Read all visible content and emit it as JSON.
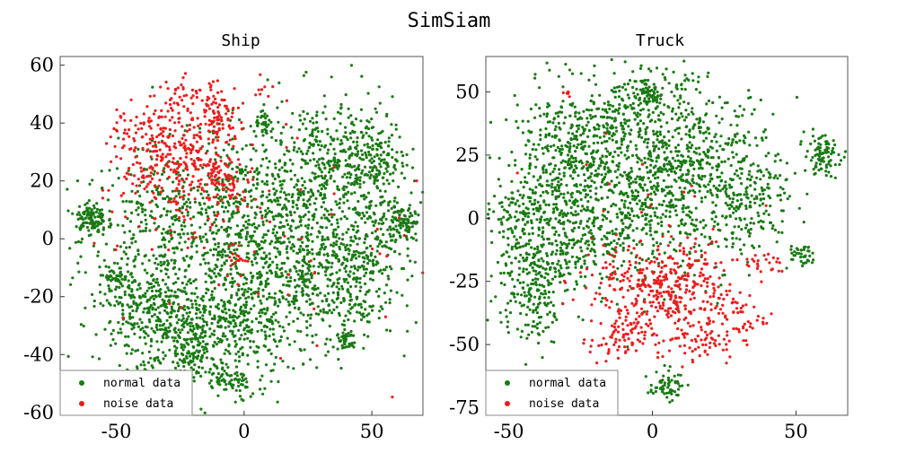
{
  "figure_title": "SimSiam",
  "colors": {
    "normal": "#1a7a14",
    "noise": "#ee1c1c"
  },
  "chart_data": [
    {
      "type": "scatter",
      "title": "Ship",
      "xlim": [
        -72,
        70
      ],
      "ylim": [
        -61,
        63
      ],
      "xticks": [
        -50,
        0,
        50
      ],
      "yticks": [
        60,
        40,
        20,
        0,
        -20,
        -40,
        -60
      ],
      "legend": {
        "placement": "bottom-left",
        "entries": [
          "normal data",
          "noise data"
        ]
      },
      "series": [
        {
          "name": "normal data",
          "color": "#1a7a14",
          "clusters": [
            {
              "c": [
                -28,
                0
              ],
              "s": [
                18,
                16
              ],
              "n": 520
            },
            {
              "c": [
                -22,
                -32
              ],
              "s": [
                14,
                8
              ],
              "n": 320
            },
            {
              "c": [
                5,
                -25
              ],
              "s": [
                16,
                12
              ],
              "n": 380
            },
            {
              "c": [
                30,
                25
              ],
              "s": [
                14,
                12
              ],
              "n": 380
            },
            {
              "c": [
                48,
                28
              ],
              "s": [
                8,
                8
              ],
              "n": 150
            },
            {
              "c": [
                22,
                -3
              ],
              "s": [
                16,
                12
              ],
              "n": 420
            },
            {
              "c": [
                40,
                -15
              ],
              "s": [
                10,
                10
              ],
              "n": 220
            },
            {
              "c": [
                0,
                15
              ],
              "s": [
                10,
                12
              ],
              "n": 180
            },
            {
              "c": [
                -60,
                7
              ],
              "s": [
                3,
                3
              ],
              "n": 110
            },
            {
              "c": [
                -50,
                -14
              ],
              "s": [
                2,
                2
              ],
              "n": 40
            },
            {
              "c": [
                63,
                5
              ],
              "s": [
                3,
                4
              ],
              "n": 90
            },
            {
              "c": [
                8,
                39
              ],
              "s": [
                2,
                2
              ],
              "n": 35
            },
            {
              "c": [
                40,
                -35
              ],
              "s": [
                2,
                2
              ],
              "n": 40
            },
            {
              "c": [
                -5,
                -50
              ],
              "s": [
                5,
                3
              ],
              "n": 60
            },
            {
              "c": [
                -22,
                -40
              ],
              "s": [
                5,
                4
              ],
              "n": 60
            },
            {
              "c": [
                52,
                10
              ],
              "s": [
                6,
                10
              ],
              "n": 120
            },
            {
              "c": [
                -40,
                -25
              ],
              "s": [
                8,
                8
              ],
              "n": 150
            }
          ]
        },
        {
          "name": "noise data",
          "color": "#ee1c1c",
          "clusters": [
            {
              "c": [
                -25,
                27
              ],
              "s": [
                11,
                11
              ],
              "n": 360
            },
            {
              "c": [
                -10,
                45
              ],
              "s": [
                4,
                5
              ],
              "n": 70
            },
            {
              "c": [
                -25,
                48
              ],
              "s": [
                3,
                3
              ],
              "n": 25
            },
            {
              "c": [
                -43,
                35
              ],
              "s": [
                6,
                5
              ],
              "n": 40
            },
            {
              "c": [
                -6,
                20
              ],
              "s": [
                5,
                4
              ],
              "n": 60
            },
            {
              "c": [
                -3,
                -6
              ],
              "s": [
                2,
                2
              ],
              "n": 15
            },
            {
              "c": [
                8,
                52
              ],
              "s": [
                2,
                2
              ],
              "n": 8
            },
            {
              "c": [
                15,
                0
              ],
              "s": [
                40,
                25
              ],
              "n": 60
            }
          ]
        }
      ]
    },
    {
      "type": "scatter",
      "title": "Truck",
      "xlim": [
        -58,
        68
      ],
      "ylim": [
        -78,
        64
      ],
      "xticks": [
        -50,
        0,
        50
      ],
      "yticks": [
        50,
        25,
        0,
        -25,
        -50,
        -75
      ],
      "legend": {
        "placement": "bottom-left",
        "entries": [
          "normal data",
          "noise data"
        ]
      },
      "series": [
        {
          "name": "normal data",
          "color": "#1a7a14",
          "clusters": [
            {
              "c": [
                -10,
                10
              ],
              "s": [
                18,
                18
              ],
              "n": 700
            },
            {
              "c": [
                15,
                20
              ],
              "s": [
                14,
                15
              ],
              "n": 450
            },
            {
              "c": [
                -32,
                20
              ],
              "s": [
                8,
                15
              ],
              "n": 300
            },
            {
              "c": [
                -42,
                -25
              ],
              "s": [
                6,
                12
              ],
              "n": 250
            },
            {
              "c": [
                0,
                50
              ],
              "s": [
                6,
                4
              ],
              "n": 120
            },
            {
              "c": [
                -15,
                38
              ],
              "s": [
                8,
                6
              ],
              "n": 120
            },
            {
              "c": [
                35,
                5
              ],
              "s": [
                8,
                10
              ],
              "n": 150
            },
            {
              "c": [
                59,
                25
              ],
              "s": [
                3,
                4
              ],
              "n": 90
            },
            {
              "c": [
                52,
                -15
              ],
              "s": [
                2,
                2
              ],
              "n": 35
            },
            {
              "c": [
                5,
                -66
              ],
              "s": [
                3,
                3
              ],
              "n": 60
            },
            {
              "c": [
                -48,
                2
              ],
              "s": [
                4,
                6
              ],
              "n": 80
            },
            {
              "c": [
                -25,
                -10
              ],
              "s": [
                8,
                6
              ],
              "n": 100
            }
          ]
        },
        {
          "name": "noise data",
          "color": "#ee1c1c",
          "clusters": [
            {
              "c": [
                5,
                -27
              ],
              "s": [
                12,
                8
              ],
              "n": 350
            },
            {
              "c": [
                -12,
                -48
              ],
              "s": [
                5,
                5
              ],
              "n": 80
            },
            {
              "c": [
                15,
                -48
              ],
              "s": [
                8,
                5
              ],
              "n": 70
            },
            {
              "c": [
                28,
                -40
              ],
              "s": [
                6,
                5
              ],
              "n": 50
            },
            {
              "c": [
                40,
                -18
              ],
              "s": [
                4,
                3
              ],
              "n": 25
            },
            {
              "c": [
                -30,
                50
              ],
              "s": [
                1,
                1
              ],
              "n": 6
            },
            {
              "c": [
                -3,
                0
              ],
              "s": [
                25,
                20
              ],
              "n": 30
            }
          ]
        }
      ]
    }
  ]
}
